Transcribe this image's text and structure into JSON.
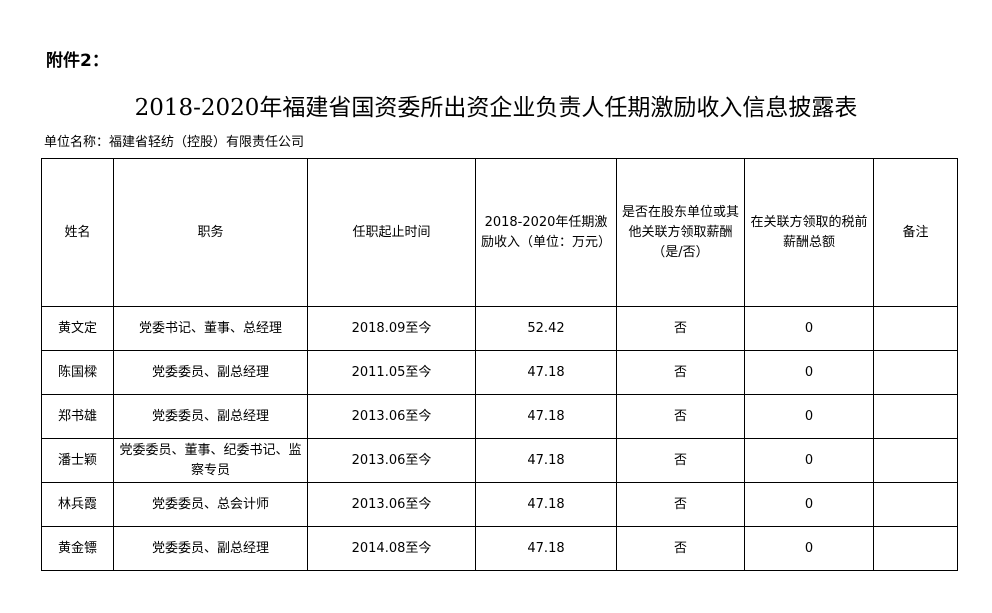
{
  "attachment_label": "附件2：",
  "title": "2018-2020年福建省国资委所出资企业负责人任期激励收入信息披露表",
  "unit_label": "单位名称：福建省轻纺（控股）有限责任公司",
  "headers": [
    "姓名",
    "职务",
    "任职起止时间",
    "2018-2020年任期激励收入（单位：万元）",
    "是否在股东单位或其他关联方领取薪酬（是/否）",
    "在关联方领取的税前薪酬总额",
    "备注"
  ],
  "rows": [
    {
      "name": "黄文定",
      "position": "党委书记、董事、总经理",
      "tenure": "2018.09至今",
      "income": "52.42",
      "related_pay": "否",
      "related_total": "0",
      "remark": ""
    },
    {
      "name": "陈国樑",
      "position": "党委委员、副总经理",
      "tenure": "2011.05至今",
      "income": "47.18",
      "related_pay": "否",
      "related_total": "0",
      "remark": ""
    },
    {
      "name": "郑书雄",
      "position": "党委委员、副总经理",
      "tenure": "2013.06至今",
      "income": "47.18",
      "related_pay": "否",
      "related_total": "0",
      "remark": ""
    },
    {
      "name": "潘士颖",
      "position": "党委委员、董事、纪委书记、监察专员",
      "tenure": "2013.06至今",
      "income": "47.18",
      "related_pay": "否",
      "related_total": "0",
      "remark": ""
    },
    {
      "name": "林兵霞",
      "position": "党委委员、总会计师",
      "tenure": "2013.06至今",
      "income": "47.18",
      "related_pay": "否",
      "related_total": "0",
      "remark": ""
    },
    {
      "name": "黄金镖",
      "position": "党委委员、副总经理",
      "tenure": "2014.08至今",
      "income": "47.18",
      "related_pay": "否",
      "related_total": "0",
      "remark": ""
    }
  ]
}
